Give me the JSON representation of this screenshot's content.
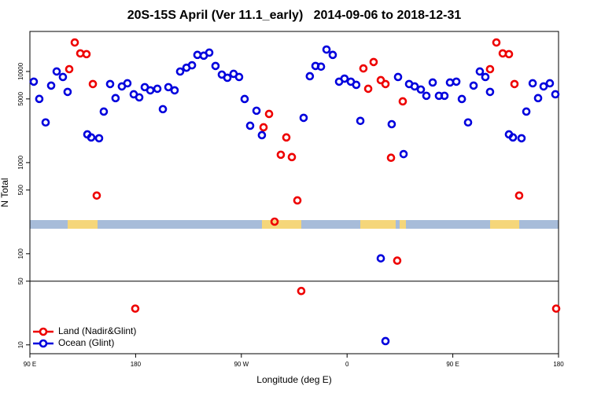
{
  "chart_data": {
    "type": "scatter",
    "title": "20S-15S April (Ver 11.1_early)   2014-09-06 to 2018-12-31",
    "xlabel": "Longitude (deg E)",
    "ylabel": "N Total",
    "xlim": [
      90,
      540
    ],
    "ylim": [
      8,
      27500
    ],
    "log_y": true,
    "hline": 50,
    "legend": "lower left",
    "xticks": [
      {
        "value": 90,
        "label": "90 E"
      },
      180,
      {
        "value": 270,
        "label": "90 W"
      },
      {
        "value": 360,
        "label": "0"
      },
      {
        "value": 450,
        "label": "90 E"
      },
      {
        "value": 540,
        "label": "180"
      }
    ],
    "yticks": [
      10,
      50,
      100,
      500,
      1000,
      5000,
      10000
    ],
    "series": [
      {
        "name": "Land (Nadir&Glint)",
        "color": "#ee0000",
        "x": [
          123.5,
          128.2,
          132.9,
          138.2,
          143.6,
          146.9,
          179.7,
          288.9,
          293.6,
          298.3,
          303.6,
          308.3,
          313.0,
          317.7,
          321.0,
          373.9,
          378.0,
          382.6,
          388.7,
          392.7,
          397.4,
          402.7,
          407.4,
          481.7,
          487.1,
          492.5,
          497.8,
          502.5,
          506.5,
          538.0
        ],
        "values": [
          10600,
          20800,
          15800,
          15500,
          7280,
          435,
          25,
          2440,
          3420,
          225,
          1220,
          1890,
          1150,
          385,
          39,
          10800,
          6460,
          12700,
          8030,
          7280,
          1130,
          84,
          4700,
          10600,
          20800,
          15800,
          15500,
          7280,
          435,
          25
        ]
      },
      {
        "name": "Ocean (Glint)",
        "color": "#0000dd",
        "x": [
          93.3,
          98.0,
          103.4,
          108.1,
          112.8,
          118.1,
          122.1,
          138.9,
          142.2,
          148.9,
          152.9,
          158.3,
          162.9,
          168.3,
          173.0,
          178.4,
          183.1,
          187.8,
          192.5,
          198.5,
          203.2,
          207.9,
          213.2,
          217.9,
          223.3,
          228.0,
          232.6,
          238.0,
          242.7,
          248.0,
          253.4,
          258.1,
          263.4,
          268.1,
          272.8,
          277.5,
          282.9,
          287.5,
          323.0,
          328.3,
          333.1,
          337.8,
          342.5,
          347.8,
          353.2,
          357.8,
          363.2,
          367.8,
          371.3,
          388.7,
          392.7,
          398.0,
          403.4,
          408.1,
          412.8,
          417.5,
          422.8,
          427.5,
          432.9,
          438.2,
          442.9,
          447.6,
          453.0,
          457.7,
          463.0,
          467.7,
          473.0,
          477.7,
          481.7,
          497.8,
          501.2,
          508.5,
          512.6,
          518.0,
          522.6,
          527.3,
          532.6,
          537.3
        ],
        "values": [
          7730,
          5000,
          2760,
          7000,
          10000,
          8700,
          5970,
          2040,
          1890,
          1850,
          3630,
          7280,
          5100,
          6860,
          7420,
          5620,
          5200,
          6730,
          6210,
          6460,
          3860,
          6730,
          6210,
          9990,
          11000,
          11700,
          15200,
          14900,
          16100,
          11500,
          9250,
          8530,
          9420,
          8700,
          4990,
          2540,
          3710,
          2000,
          3100,
          8870,
          11500,
          11300,
          17400,
          15200,
          7730,
          8350,
          7730,
          7130,
          2870,
          89,
          11,
          2640,
          8700,
          1240,
          7280,
          6860,
          6340,
          5410,
          7570,
          5410,
          5410,
          7570,
          7730,
          4990,
          2760,
          7000,
          10000,
          8700,
          5970,
          2040,
          1890,
          1850,
          3630,
          7420,
          5100,
          6860,
          7420,
          5620
        ]
      }
    ]
  }
}
